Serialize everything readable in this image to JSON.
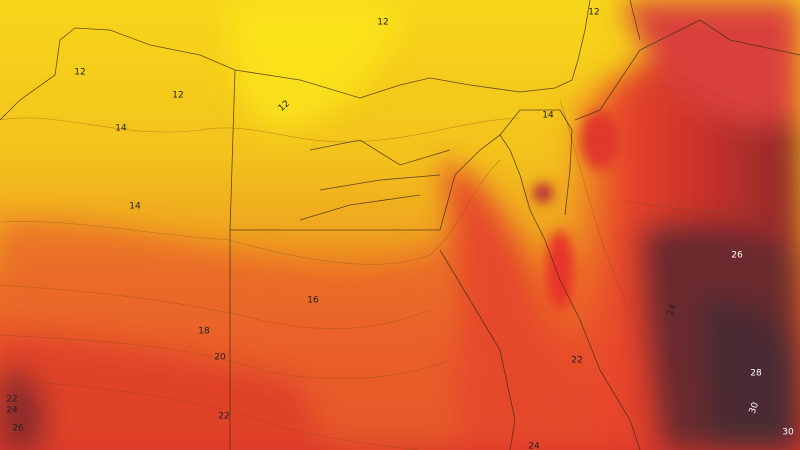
{
  "map": {
    "contour_labels": [
      "12",
      "12",
      "12",
      "12",
      "12",
      "14",
      "14",
      "14",
      "16",
      "18",
      "20",
      "22",
      "24",
      "26",
      "22",
      "22",
      "24",
      "26",
      "28",
      "30",
      "30",
      "24"
    ]
  }
}
